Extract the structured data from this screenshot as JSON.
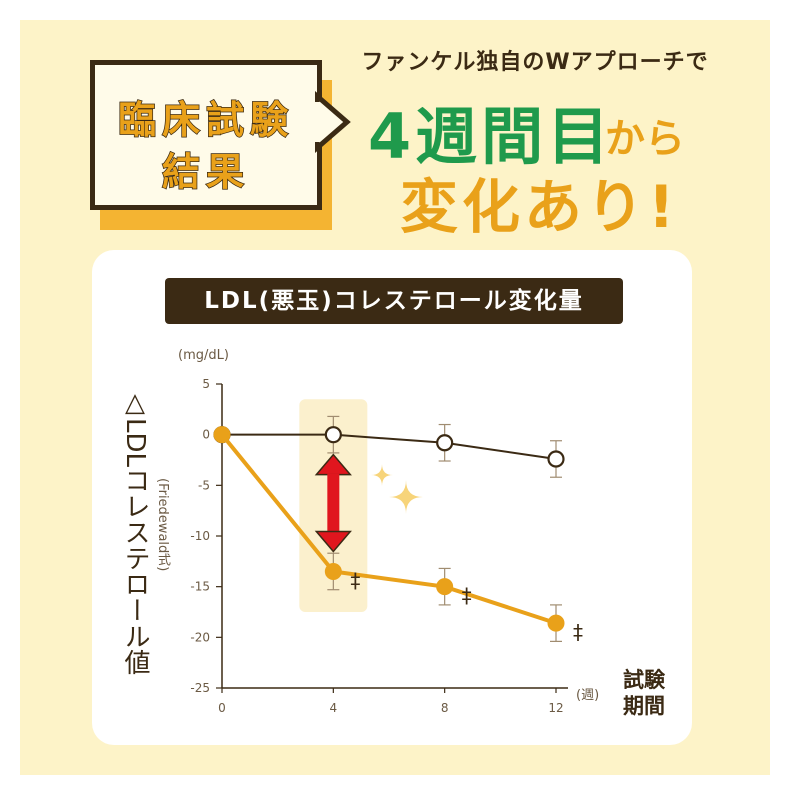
{
  "header": {
    "badge_line1": "臨床試験",
    "badge_line2": "結果",
    "subtitle": "ファンケル独自のWアプローチで",
    "headline_green": "4週間目",
    "headline_connector": "から",
    "headline_orange": "変化あり!"
  },
  "chart": {
    "title_label": "LDL(悪玉)コレステロール変化量",
    "unit": "(mg/dL)",
    "ylabel": "△LDLコレステロール値",
    "ylabel_sub": "(Friedewald式)",
    "xlabel": "試験期間",
    "xunit": "(週)"
  },
  "colors": {
    "page_bg": "#fdf3c8",
    "dark_brown": "#3b2a14",
    "green": "#1f9a4c",
    "orange": "#e9a11a",
    "red_arrow": "#e0161e",
    "highlight": "#fbf0cd"
  },
  "chart_data": {
    "type": "line",
    "title": "LDL(悪玉)コレステロール変化量",
    "xlabel": "試験期間",
    "ylabel": "△LDLコレステロール値",
    "x": [
      0,
      4,
      8,
      12
    ],
    "xlim": [
      0,
      12
    ],
    "ylim": [
      -25,
      5
    ],
    "yticks": [
      5,
      0,
      -5,
      -10,
      -15,
      -20,
      -25
    ],
    "grid": false,
    "series": [
      {
        "style": "open-circle",
        "color": "#3b2a14",
        "values": [
          0,
          0,
          -0.8,
          -2.4
        ],
        "err": [
          0,
          1.8,
          1.8,
          1.8
        ]
      },
      {
        "style": "filled-circle",
        "color": "#e9a11a",
        "values": [
          0,
          -13.5,
          -15.0,
          -18.6
        ],
        "err": [
          0,
          1.8,
          1.8,
          1.8
        ],
        "marks": [
          "",
          "‡",
          "‡",
          "‡"
        ]
      }
    ],
    "highlight_x": 4,
    "arrow_between_series_at_x": 4
  }
}
